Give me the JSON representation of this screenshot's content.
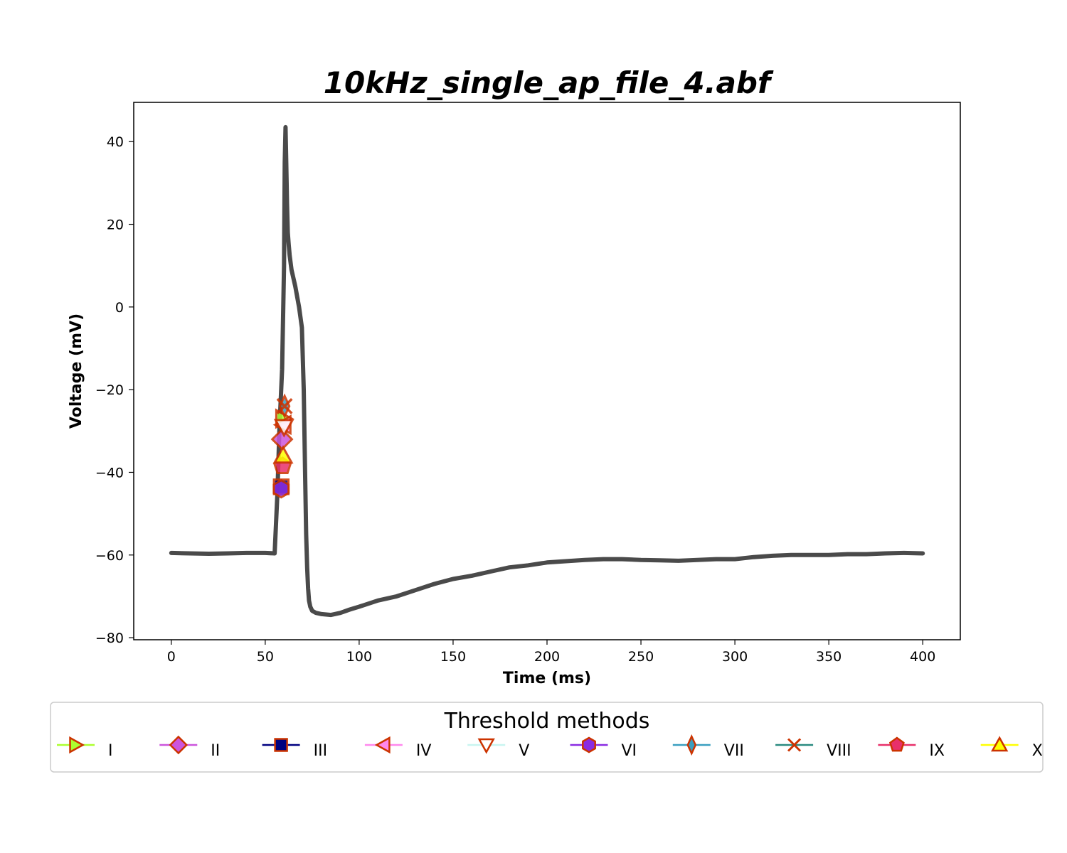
{
  "chart_data": {
    "type": "line",
    "title": "10kHz_single_ap_file_4.abf",
    "xlabel": "Time (ms)",
    "ylabel": "Voltage (mV)",
    "xlim": [
      -20,
      420
    ],
    "ylim": [
      -80.5,
      49.5
    ],
    "xticks": [
      0,
      50,
      100,
      150,
      200,
      250,
      300,
      350,
      400
    ],
    "yticks": [
      -80,
      -60,
      -40,
      -20,
      0,
      20,
      40
    ],
    "grid": false,
    "trace_color": "#4a4a4a",
    "series": [
      {
        "x": [
          0,
          10,
          20,
          30,
          40,
          50,
          55,
          56.5,
          57.5,
          59,
          60,
          60.4,
          60.8,
          61.2,
          61.6,
          62,
          62.5,
          63,
          64,
          66,
          68,
          69.5,
          70.5,
          71.2,
          71.8,
          72.3,
          72.8,
          73.3,
          74,
          75,
          77,
          80,
          85,
          90,
          95,
          100,
          110,
          120,
          130,
          140,
          150,
          160,
          170,
          180,
          190,
          200,
          210,
          220,
          230,
          240,
          250,
          260,
          270,
          280,
          290,
          300,
          310,
          320,
          330,
          340,
          350,
          360,
          370,
          380,
          390,
          400
        ],
        "y": [
          -59.5,
          -59.6,
          -59.7,
          -59.6,
          -59.5,
          -59.5,
          -59.6,
          -45,
          -30,
          -15,
          10,
          35,
          43.5,
          35,
          25,
          18,
          15,
          12.5,
          9,
          5,
          0,
          -5,
          -20,
          -40,
          -55,
          -63,
          -68,
          -71,
          -72.5,
          -73.5,
          -74,
          -74.3,
          -74.5,
          -74,
          -73.2,
          -72.5,
          -71,
          -70,
          -68.5,
          -67,
          -65.8,
          -65,
          -64,
          -63,
          -62.5,
          -61.8,
          -61.5,
          -61.2,
          -61,
          -61,
          -61.2,
          -61.3,
          -61.4,
          -61.2,
          -61,
          -61,
          -60.5,
          -60.2,
          -60,
          -60,
          -60,
          -59.8,
          -59.8,
          -59.6,
          -59.5,
          -59.6
        ]
      }
    ],
    "threshold_markers": [
      {
        "method": "I",
        "x": 59.5,
        "y": -27
      },
      {
        "method": "II",
        "x": 59.0,
        "y": -32
      },
      {
        "method": "III",
        "x": 58.5,
        "y": -43.5
      },
      {
        "method": "IV",
        "x": 59.8,
        "y": -28.5
      },
      {
        "method": "V",
        "x": 60.0,
        "y": -29
      },
      {
        "method": "VI",
        "x": 58.5,
        "y": -44
      },
      {
        "method": "VII",
        "x": 60.3,
        "y": -24
      },
      {
        "method": "VIII",
        "x": 60.3,
        "y": -24
      },
      {
        "method": "IX",
        "x": 59.2,
        "y": -38.5
      },
      {
        "method": "X",
        "x": 59.5,
        "y": -36
      }
    ]
  },
  "legend": {
    "title": "Threshold methods",
    "items": [
      {
        "label": "I",
        "marker": "triangle-right",
        "line_color": "#adff2f",
        "face_color": "#adff2f"
      },
      {
        "label": "II",
        "marker": "diamond",
        "line_color": "#cc55dd",
        "face_color": "#cc55dd"
      },
      {
        "label": "III",
        "marker": "square",
        "line_color": "#000080",
        "face_color": "#000080"
      },
      {
        "label": "IV",
        "marker": "triangle-left",
        "line_color": "#ff88ee",
        "face_color": "#ff88ee"
      },
      {
        "label": "V",
        "marker": "triangle-down",
        "line_color": "#c8f5f0",
        "face_color": "#ffffff"
      },
      {
        "label": "VI",
        "marker": "hexagon",
        "line_color": "#8a2be2",
        "face_color": "#8a2be2"
      },
      {
        "label": "VII",
        "marker": "thin-diamond",
        "line_color": "#3a9fc0",
        "face_color": "#3a9fc0"
      },
      {
        "label": "VIII",
        "marker": "x",
        "line_color": "#2a8a80",
        "face_color": "none"
      },
      {
        "label": "IX",
        "marker": "pentagon",
        "line_color": "#e8306a",
        "face_color": "#e8306a"
      },
      {
        "label": "X",
        "marker": "triangle-up",
        "line_color": "#ffff00",
        "face_color": "#ffff00"
      }
    ],
    "edge_color": "#cc3300"
  }
}
